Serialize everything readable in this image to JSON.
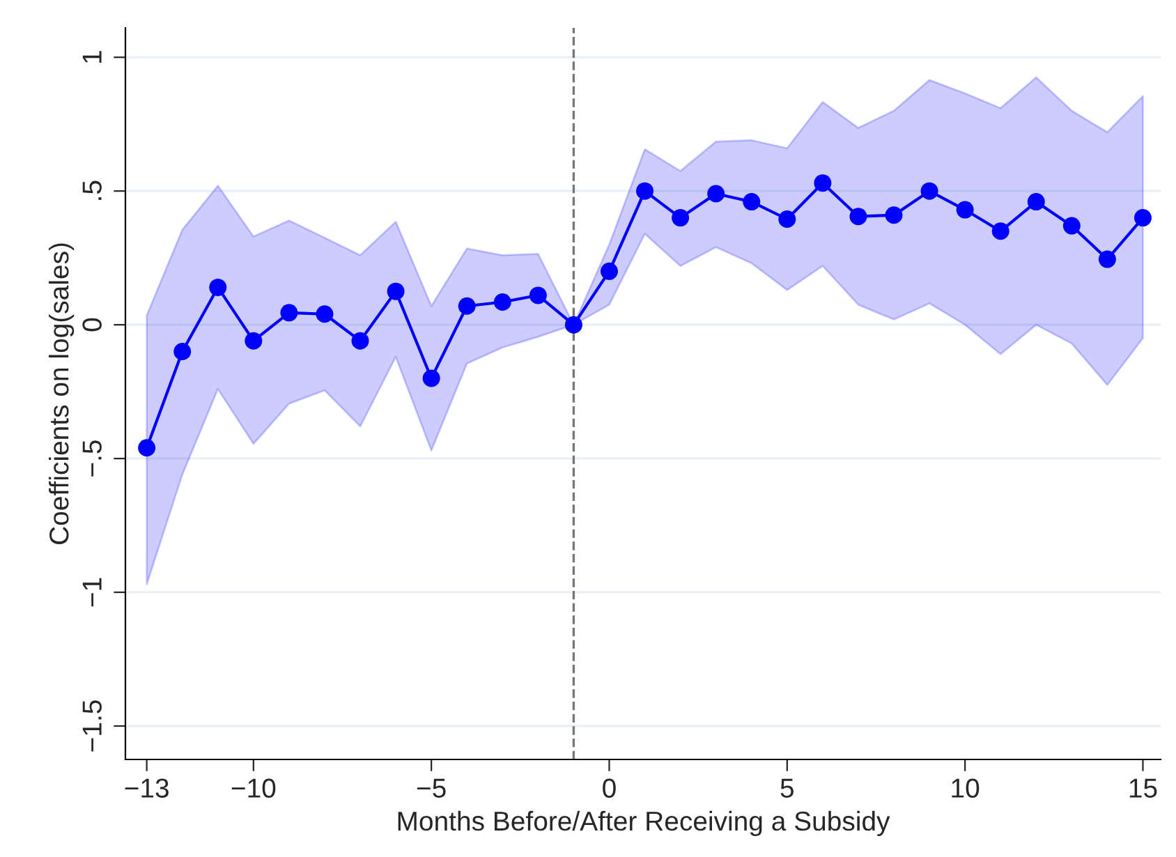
{
  "chart_data": {
    "type": "line",
    "xlabel": "Months Before/After Receiving a Subsidy",
    "ylabel": "Coefficients on log(sales)",
    "x": [
      -13,
      -12,
      -11,
      -10,
      -9,
      -8,
      -7,
      -6,
      -5,
      -4,
      -3,
      -2,
      -1,
      0,
      1,
      2,
      3,
      4,
      5,
      6,
      7,
      8,
      9,
      10,
      11,
      12,
      13,
      14,
      15
    ],
    "series": [
      {
        "color": "#0000ff",
        "values": [
          -0.46,
          -0.1,
          0.14,
          -0.06,
          0.045,
          0.04,
          -0.06,
          0.125,
          -0.2,
          0.07,
          0.085,
          0.11,
          0,
          0.2,
          0.5,
          0.4,
          0.49,
          0.46,
          0.395,
          0.53,
          0.405,
          0.41,
          0.5,
          0.43,
          0.35,
          0.46,
          0.37,
          0.245,
          0.4
        ],
        "lower": [
          -0.97,
          -0.56,
          -0.24,
          -0.445,
          -0.295,
          -0.245,
          -0.38,
          -0.12,
          -0.47,
          -0.145,
          -0.085,
          -0.045,
          0,
          0.075,
          0.34,
          0.22,
          0.29,
          0.23,
          0.13,
          0.22,
          0.075,
          0.02,
          0.08,
          0.0,
          -0.11,
          0.0,
          -0.07,
          -0.225,
          -0.05
        ],
        "upper": [
          0.035,
          0.355,
          0.52,
          0.33,
          0.39,
          0.325,
          0.26,
          0.385,
          0.07,
          0.285,
          0.26,
          0.265,
          0,
          0.3,
          0.656,
          0.575,
          0.685,
          0.69,
          0.66,
          0.833,
          0.736,
          0.8,
          0.915,
          0.865,
          0.81,
          0.925,
          0.8,
          0.72,
          0.855
        ]
      }
    ],
    "xlim": [
      -13.6,
      15.5
    ],
    "xticks": [
      {
        "value": -13,
        "label": "−13"
      },
      {
        "value": -10,
        "label": "−10"
      },
      {
        "value": -5,
        "label": "−5"
      },
      0,
      5,
      10,
      15
    ],
    "ylim": [
      -1.625,
      1.11
    ],
    "yticks": [
      {
        "value": -1.5,
        "label": "−1.5"
      },
      {
        "value": -1,
        "label": "−1"
      },
      {
        "value": -0.5,
        "label": "−.5"
      },
      0,
      {
        "value": 0.5,
        "label": ".5"
      },
      1
    ],
    "ref_lines": [
      {
        "axis": "x",
        "value": -1,
        "color": "#777777",
        "line_style": "dashed"
      }
    ],
    "grid": "y",
    "marker": "circle",
    "line_style": "solid"
  }
}
